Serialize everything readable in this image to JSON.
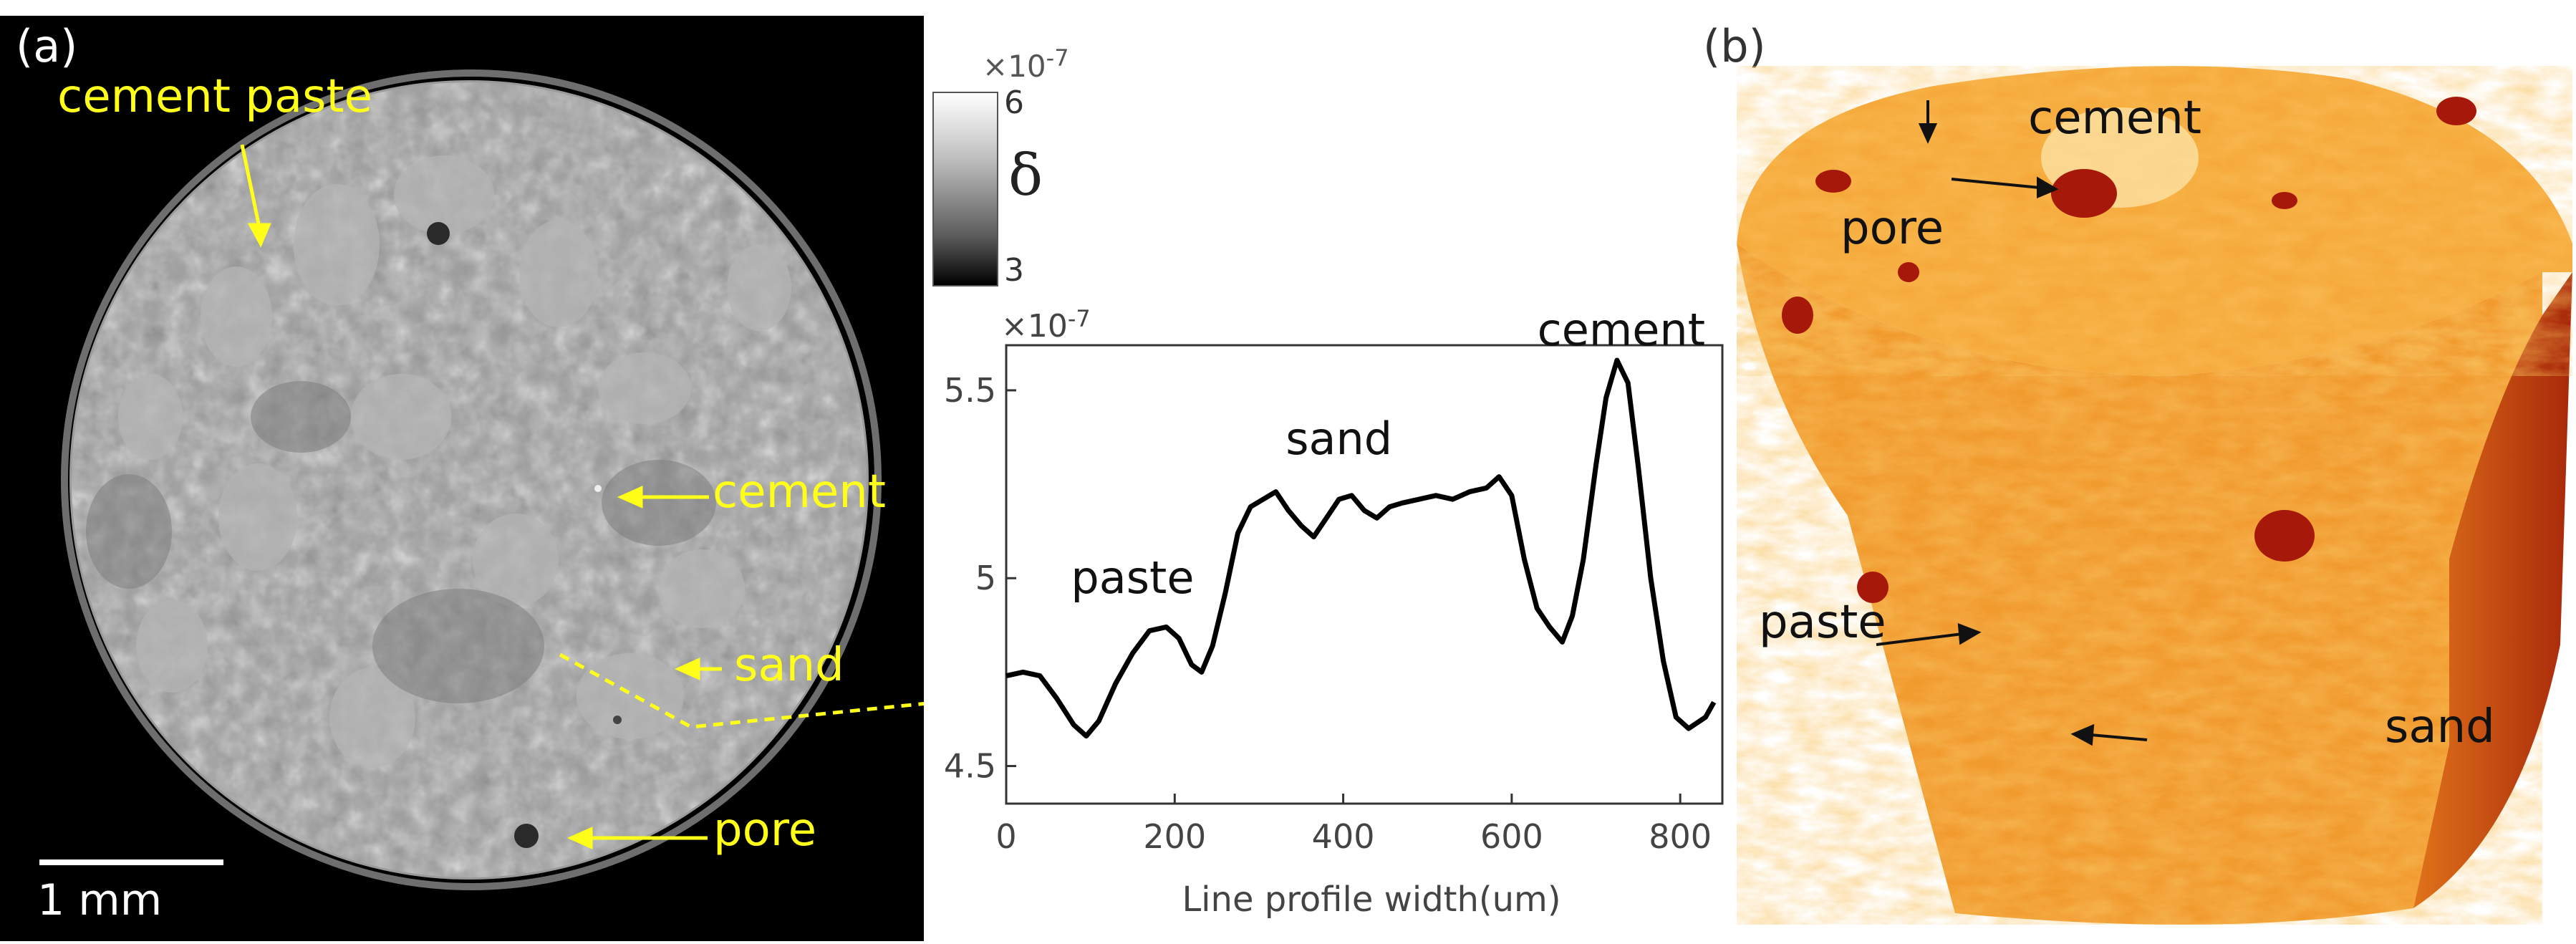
{
  "panel_a": {
    "label": "(a)",
    "annotations": {
      "cement_paste": "cement paste",
      "cement": "cement",
      "sand": "sand",
      "pore": "pore"
    },
    "scalebar_label": "1 mm",
    "colorbar": {
      "exponent": "×10",
      "exponent_power": "-7",
      "max_label": "6",
      "min_label": "3",
      "symbol": "δ"
    }
  },
  "panel_b": {
    "label": "(b)",
    "annotations": {
      "cement": "cement",
      "pore": "pore",
      "paste": "paste",
      "sand": "sand"
    }
  },
  "colors": {
    "annotation_yellow": "#ffff1a",
    "profile_line": "#000000",
    "volume_orange": "#f08a1a",
    "volume_dark": "#b8280a"
  },
  "chart_data": {
    "type": "line",
    "xlabel": "Line profile width(um)",
    "ylabel": "",
    "y_exponent": "×10",
    "y_exponent_power": "-7",
    "xlim": [
      0,
      850
    ],
    "ylim": [
      4.4,
      5.62
    ],
    "xticks": [
      0,
      200,
      400,
      600,
      800
    ],
    "yticks": [
      4.5,
      5,
      5.5
    ],
    "ytick_labels": [
      "4.5",
      "5",
      "5.5"
    ],
    "grid": false,
    "annotations": [
      {
        "text": "paste",
        "x": 150,
        "y": 4.96
      },
      {
        "text": "sand",
        "x": 395,
        "y": 5.33
      },
      {
        "text": "cement",
        "x": 730,
        "y": 5.62
      }
    ],
    "series": [
      {
        "x": [
          0,
          20,
          40,
          60,
          80,
          95,
          110,
          130,
          150,
          170,
          190,
          205,
          220,
          232,
          245,
          260,
          275,
          290,
          305,
          320,
          335,
          350,
          365,
          380,
          395,
          410,
          425,
          440,
          455,
          470,
          490,
          510,
          530,
          550,
          570,
          585,
          600,
          615,
          630,
          645,
          660,
          672,
          685,
          700,
          712,
          725,
          738,
          750,
          765,
          780,
          795,
          810,
          830,
          840
        ],
        "values": [
          4.74,
          4.75,
          4.74,
          4.68,
          4.61,
          4.58,
          4.62,
          4.72,
          4.8,
          4.86,
          4.87,
          4.84,
          4.77,
          4.75,
          4.82,
          4.96,
          5.12,
          5.19,
          5.21,
          5.23,
          5.18,
          5.14,
          5.11,
          5.16,
          5.21,
          5.22,
          5.18,
          5.16,
          5.19,
          5.2,
          5.21,
          5.22,
          5.21,
          5.23,
          5.24,
          5.27,
          5.22,
          5.05,
          4.92,
          4.87,
          4.83,
          4.9,
          5.05,
          5.3,
          5.48,
          5.58,
          5.52,
          5.3,
          5.0,
          4.78,
          4.63,
          4.6,
          4.63,
          4.67
        ]
      }
    ]
  }
}
